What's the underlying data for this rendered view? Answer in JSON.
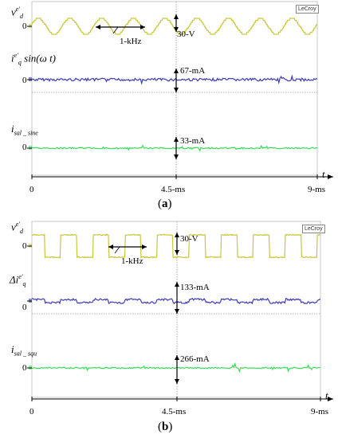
{
  "brand": "LeCroy",
  "chart_data": [
    {
      "type": "line",
      "panel": "a",
      "caption_letter": "a",
      "caption_open": "(",
      "caption_close": ")",
      "x_ticks": [
        "0",
        "4.5-ms",
        "9-ms"
      ],
      "x_axis_symbol": "t",
      "time_range_ms": [
        0,
        9
      ],
      "frequency_label": "1-kHz",
      "series": [
        {
          "symbol_main": "v",
          "symbol_sup": "e'",
          "symbol_sub": "d",
          "symbol_tail": "",
          "zero_label": "0",
          "waveform": "sine",
          "scale_label": "30-V",
          "color": "#c8c83a"
        },
        {
          "symbol_main": "i",
          "symbol_sup": "e'",
          "symbol_sub": "q",
          "symbol_tail": " sin(ω t)",
          "zero_label": "0",
          "waveform": "noisy-dc",
          "scale_label": "67-mA",
          "color": "#3b3bb8"
        },
        {
          "symbol_main": "i",
          "symbol_sup": "",
          "symbol_sub": "sal _ sine",
          "symbol_tail": "",
          "zero_label": "0",
          "waveform": "noisy-dc",
          "scale_label": "33-mA",
          "color": "#33e055"
        }
      ]
    },
    {
      "type": "line",
      "panel": "b",
      "caption_letter": "b",
      "caption_open": "(",
      "caption_close": ")",
      "x_ticks": [
        "0",
        "4.5-ms",
        "9-ms"
      ],
      "x_axis_symbol": "t",
      "time_range_ms": [
        0,
        9
      ],
      "frequency_label": "1-kHz",
      "series": [
        {
          "symbol_main": "v",
          "symbol_sup": "e'",
          "symbol_sub": "d",
          "symbol_tail": "",
          "zero_label": "0",
          "waveform": "square",
          "scale_label": "30-V",
          "color": "#c8c83a"
        },
        {
          "symbol_main": "Δi",
          "symbol_sup": "e'",
          "symbol_sub": "q",
          "symbol_tail": "",
          "zero_label": "0",
          "waveform": "stepped",
          "scale_label": "133-mA",
          "color": "#3b3bb8"
        },
        {
          "symbol_main": "i",
          "symbol_sup": "",
          "symbol_sub": "sal _ squ",
          "symbol_tail": "",
          "zero_label": "0",
          "waveform": "noisy-dc",
          "scale_label": "266-mA",
          "color": "#33e055"
        }
      ]
    }
  ]
}
